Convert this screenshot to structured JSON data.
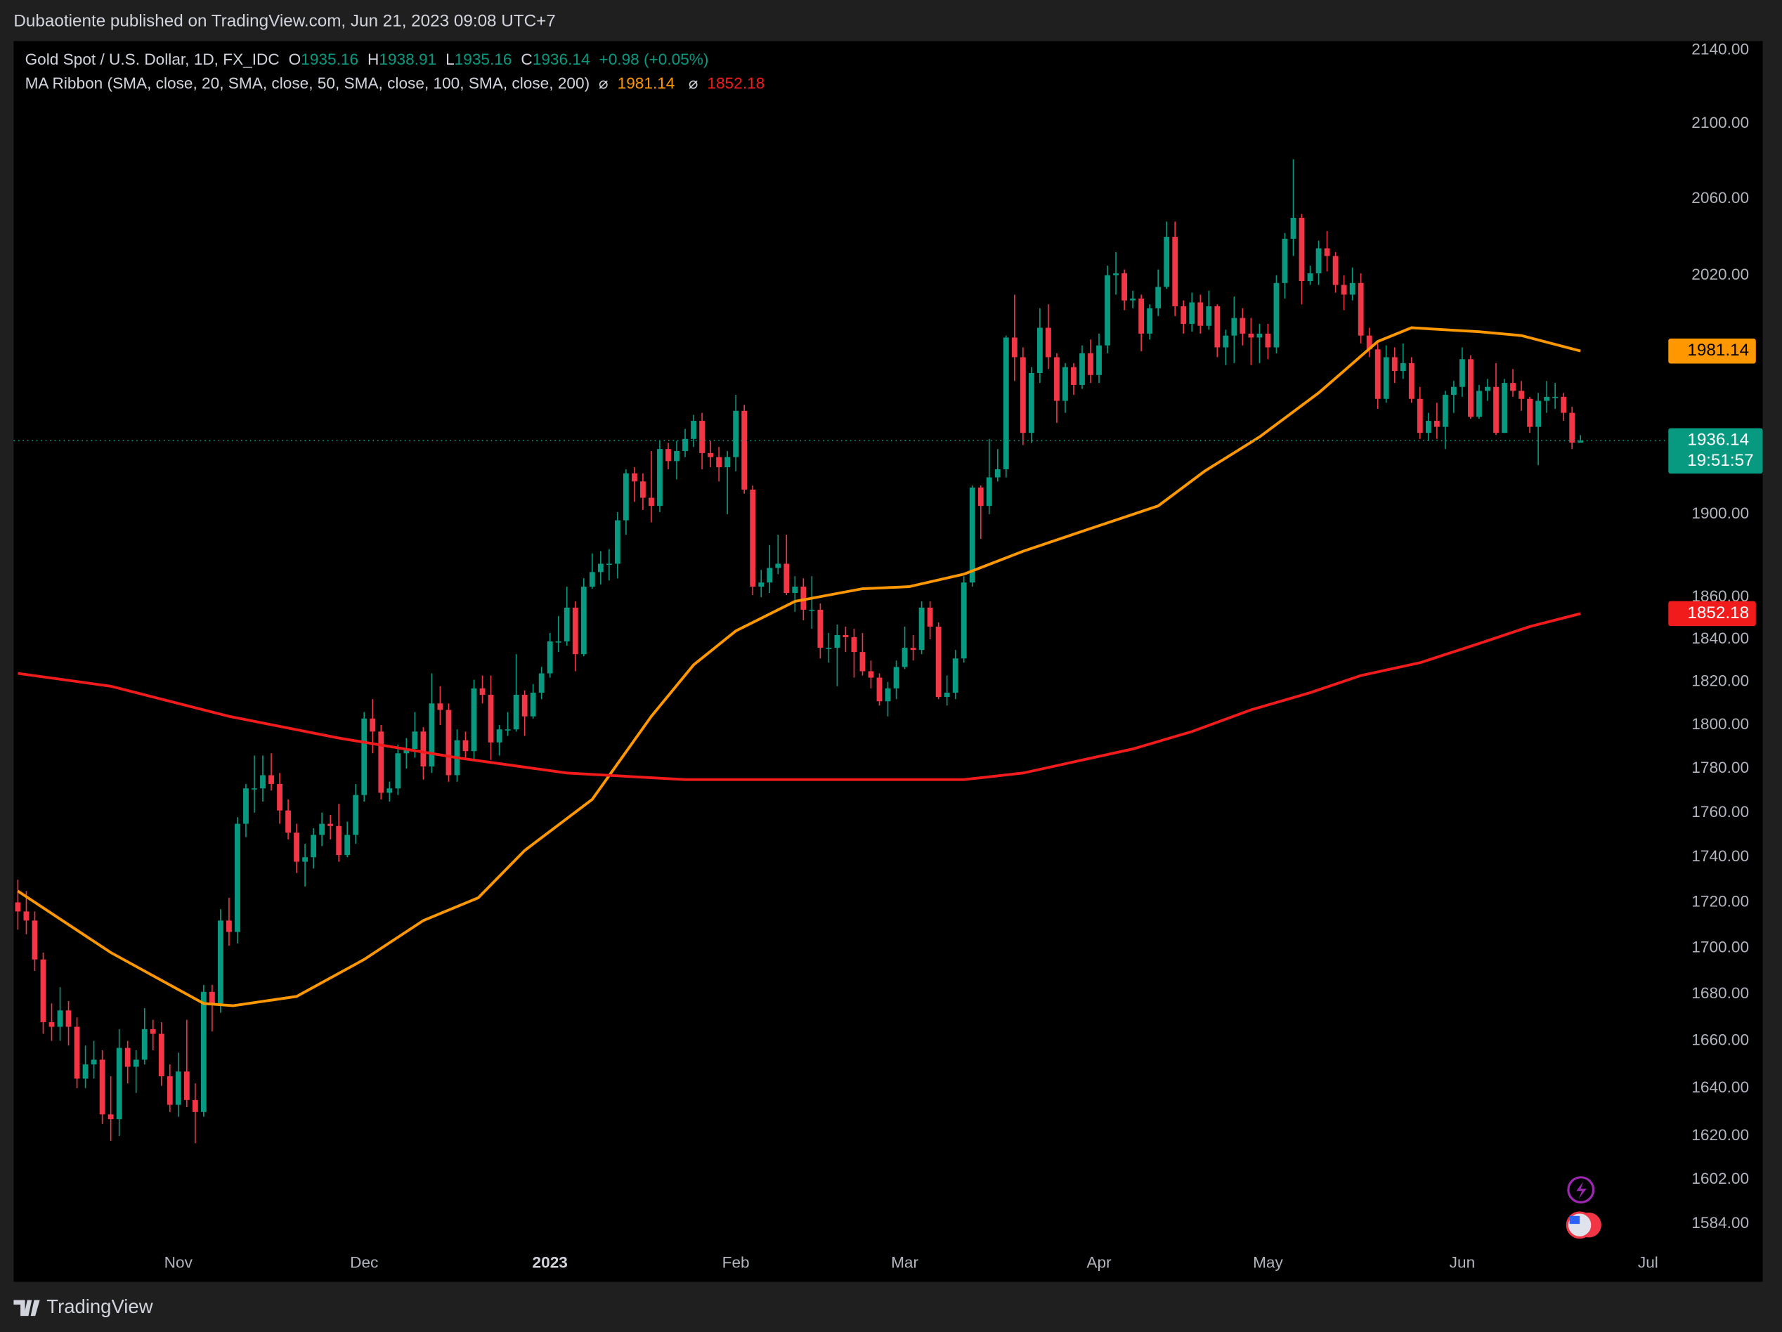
{
  "header": {
    "published": "Dubaotiente published on TradingView.com, Jun 21, 2023 09:08 UTC+7"
  },
  "chart_data": {
    "type": "candlestick",
    "symbol": "Gold Spot / U.S. Dollar, 1D, FX_IDC",
    "ohlc_labels": [
      "O",
      "H",
      "L",
      "C"
    ],
    "change": "+0.98 (+0.05%)",
    "ribbon": "MA Ribbon (SMA, close, 20, SMA, close, 50, SMA, close, 100, SMA, close, 200)",
    "ribbon_symbol": "⌀",
    "countdown": "19:51:57",
    "up_color": "#089981",
    "down_color": "#f23645",
    "ohlc": [
      [
        1720,
        1730,
        1708,
        1716
      ],
      [
        1716,
        1725,
        1706,
        1712
      ],
      [
        1712,
        1716,
        1690,
        1695
      ],
      [
        1695,
        1698,
        1663,
        1668
      ],
      [
        1668,
        1676,
        1660,
        1666
      ],
      [
        1666,
        1683,
        1660,
        1673
      ],
      [
        1673,
        1677,
        1658,
        1666
      ],
      [
        1666,
        1670,
        1640,
        1644
      ],
      [
        1644,
        1658,
        1640,
        1650
      ],
      [
        1650,
        1660,
        1644,
        1652
      ],
      [
        1652,
        1656,
        1625,
        1629
      ],
      [
        1629,
        1645,
        1618,
        1627
      ],
      [
        1627,
        1665,
        1620,
        1657
      ],
      [
        1657,
        1660,
        1642,
        1649
      ],
      [
        1649,
        1656,
        1638,
        1652
      ],
      [
        1652,
        1674,
        1650,
        1665
      ],
      [
        1665,
        1669,
        1656,
        1663
      ],
      [
        1663,
        1668,
        1641,
        1645
      ],
      [
        1645,
        1650,
        1630,
        1633
      ],
      [
        1633,
        1655,
        1628,
        1647
      ],
      [
        1647,
        1669,
        1632,
        1635
      ],
      [
        1635,
        1642,
        1617,
        1630
      ],
      [
        1630,
        1684,
        1628,
        1681
      ],
      [
        1681,
        1684,
        1664,
        1676
      ],
      [
        1676,
        1717,
        1672,
        1712
      ],
      [
        1712,
        1722,
        1701,
        1707
      ],
      [
        1707,
        1758,
        1702,
        1755
      ],
      [
        1755,
        1773,
        1749,
        1771
      ],
      [
        1771,
        1786,
        1760,
        1771
      ],
      [
        1771,
        1786,
        1765,
        1777
      ],
      [
        1777,
        1787,
        1770,
        1773
      ],
      [
        1773,
        1778,
        1755,
        1761
      ],
      [
        1761,
        1766,
        1748,
        1751
      ],
      [
        1751,
        1755,
        1733,
        1738
      ],
      [
        1738,
        1746,
        1727,
        1740
      ],
      [
        1740,
        1753,
        1735,
        1750
      ],
      [
        1750,
        1760,
        1745,
        1755
      ],
      [
        1755,
        1759,
        1748,
        1754
      ],
      [
        1754,
        1764,
        1738,
        1741
      ],
      [
        1741,
        1756,
        1740,
        1750
      ],
      [
        1750,
        1773,
        1746,
        1768
      ],
      [
        1768,
        1806,
        1765,
        1803
      ],
      [
        1803,
        1812,
        1787,
        1797
      ],
      [
        1797,
        1800,
        1766,
        1769
      ],
      [
        1769,
        1774,
        1765,
        1771
      ],
      [
        1771,
        1791,
        1768,
        1787
      ],
      [
        1787,
        1794,
        1780,
        1789
      ],
      [
        1789,
        1806,
        1785,
        1797
      ],
      [
        1797,
        1799,
        1775,
        1781
      ],
      [
        1781,
        1824,
        1778,
        1810
      ],
      [
        1810,
        1818,
        1800,
        1807
      ],
      [
        1807,
        1810,
        1774,
        1777
      ],
      [
        1777,
        1798,
        1774,
        1793
      ],
      [
        1793,
        1797,
        1785,
        1788
      ],
      [
        1788,
        1821,
        1784,
        1817
      ],
      [
        1817,
        1823,
        1810,
        1814
      ],
      [
        1814,
        1823,
        1784,
        1792
      ],
      [
        1792,
        1800,
        1786,
        1798
      ],
      [
        1798,
        1806,
        1795,
        1798
      ],
      [
        1798,
        1833,
        1797,
        1814
      ],
      [
        1814,
        1816,
        1795,
        1804
      ],
      [
        1804,
        1819,
        1803,
        1815
      ],
      [
        1815,
        1827,
        1812,
        1824
      ],
      [
        1824,
        1843,
        1822,
        1839
      ],
      [
        1839,
        1851,
        1834,
        1839
      ],
      [
        1839,
        1865,
        1837,
        1855
      ],
      [
        1855,
        1858,
        1825,
        1833
      ],
      [
        1833,
        1869,
        1832,
        1865
      ],
      [
        1865,
        1881,
        1864,
        1872
      ],
      [
        1872,
        1882,
        1866,
        1876
      ],
      [
        1876,
        1883,
        1868,
        1876
      ],
      [
        1876,
        1901,
        1869,
        1897
      ],
      [
        1897,
        1922,
        1890,
        1920
      ],
      [
        1920,
        1923,
        1906,
        1916
      ],
      [
        1916,
        1920,
        1902,
        1908
      ],
      [
        1908,
        1931,
        1896,
        1904
      ],
      [
        1904,
        1936,
        1901,
        1932
      ],
      [
        1932,
        1935,
        1922,
        1926
      ],
      [
        1926,
        1936,
        1917,
        1931
      ],
      [
        1931,
        1942,
        1928,
        1937
      ],
      [
        1937,
        1949,
        1933,
        1946
      ],
      [
        1946,
        1950,
        1922,
        1930
      ],
      [
        1930,
        1936,
        1923,
        1928
      ],
      [
        1928,
        1933,
        1916,
        1923
      ],
      [
        1923,
        1931,
        1900,
        1928
      ],
      [
        1928,
        1959,
        1921,
        1951
      ],
      [
        1951,
        1954,
        1910,
        1912
      ],
      [
        1912,
        1914,
        1861,
        1865
      ],
      [
        1865,
        1873,
        1860,
        1867
      ],
      [
        1867,
        1885,
        1862,
        1874
      ],
      [
        1874,
        1890,
        1871,
        1876
      ],
      [
        1876,
        1890,
        1861,
        1862
      ],
      [
        1862,
        1870,
        1853,
        1865
      ],
      [
        1865,
        1869,
        1849,
        1854
      ],
      [
        1854,
        1870,
        1845,
        1854
      ],
      [
        1854,
        1857,
        1831,
        1836
      ],
      [
        1836,
        1843,
        1829,
        1836
      ],
      [
        1836,
        1847,
        1818,
        1842
      ],
      [
        1842,
        1846,
        1834,
        1841
      ],
      [
        1841,
        1845,
        1822,
        1834
      ],
      [
        1834,
        1843,
        1823,
        1825
      ],
      [
        1825,
        1830,
        1817,
        1822
      ],
      [
        1822,
        1824,
        1809,
        1811
      ],
      [
        1811,
        1820,
        1804,
        1817
      ],
      [
        1817,
        1830,
        1812,
        1827
      ],
      [
        1827,
        1846,
        1826,
        1836
      ],
      [
        1836,
        1842,
        1830,
        1835
      ],
      [
        1835,
        1858,
        1833,
        1855
      ],
      [
        1855,
        1858,
        1840,
        1846
      ],
      [
        1846,
        1848,
        1812,
        1813
      ],
      [
        1813,
        1823,
        1809,
        1815
      ],
      [
        1815,
        1835,
        1812,
        1831
      ],
      [
        1831,
        1870,
        1829,
        1867
      ],
      [
        1867,
        1914,
        1865,
        1913
      ],
      [
        1913,
        1914,
        1888,
        1904
      ],
      [
        1904,
        1937,
        1900,
        1918
      ],
      [
        1918,
        1932,
        1916,
        1922
      ],
      [
        1922,
        1989,
        1918,
        1988
      ],
      [
        1988,
        2010,
        1966,
        1978
      ],
      [
        1978,
        1983,
        1934,
        1940
      ],
      [
        1940,
        1973,
        1935,
        1970
      ],
      [
        1970,
        2003,
        1965,
        1993
      ],
      [
        1993,
        2005,
        1972,
        1978
      ],
      [
        1978,
        1980,
        1945,
        1956
      ],
      [
        1956,
        1975,
        1950,
        1973
      ],
      [
        1973,
        1975,
        1959,
        1964
      ],
      [
        1964,
        1984,
        1962,
        1980
      ],
      [
        1980,
        1987,
        1965,
        1969
      ],
      [
        1969,
        1990,
        1965,
        1984
      ],
      [
        1984,
        2025,
        1980,
        2020
      ],
      [
        2020,
        2032,
        2010,
        2021
      ],
      [
        2021,
        2023,
        2002,
        2007
      ],
      [
        2007,
        2012,
        2003,
        2008
      ],
      [
        2008,
        2010,
        1981,
        1990
      ],
      [
        1990,
        2005,
        1987,
        2003
      ],
      [
        2003,
        2023,
        1999,
        2014
      ],
      [
        2014,
        2048,
        2013,
        2040
      ],
      [
        2040,
        2048,
        1999,
        2004
      ],
      [
        2004,
        2007,
        1990,
        1995
      ],
      [
        1995,
        2011,
        1991,
        2006
      ],
      [
        2006,
        2010,
        1990,
        1994
      ],
      [
        1994,
        2012,
        1992,
        2004
      ],
      [
        2004,
        2005,
        1978,
        1983
      ],
      [
        1983,
        1992,
        1974,
        1989
      ],
      [
        1989,
        2009,
        1975,
        1998
      ],
      [
        1998,
        2003,
        1984,
        1990
      ],
      [
        1990,
        1998,
        1974,
        1988
      ],
      [
        1988,
        1995,
        1975,
        1990
      ],
      [
        1990,
        1995,
        1977,
        1983
      ],
      [
        1983,
        2020,
        1980,
        2016
      ],
      [
        2016,
        2042,
        2008,
        2039
      ],
      [
        2039,
        2081,
        2030,
        2050
      ],
      [
        2050,
        2052,
        2005,
        2017
      ],
      [
        2017,
        2025,
        2015,
        2021
      ],
      [
        2021,
        2038,
        2015,
        2034
      ],
      [
        2034,
        2043,
        2022,
        2030
      ],
      [
        2030,
        2032,
        2011,
        2015
      ],
      [
        2015,
        2020,
        2002,
        2010
      ],
      [
        2010,
        2024,
        2007,
        2016
      ],
      [
        2016,
        2021,
        1985,
        1989
      ],
      [
        1989,
        1993,
        1978,
        1982
      ],
      [
        1982,
        1985,
        1952,
        1957
      ],
      [
        1957,
        1984,
        1955,
        1978
      ],
      [
        1978,
        1983,
        1965,
        1971
      ],
      [
        1971,
        1985,
        1967,
        1975
      ],
      [
        1975,
        1978,
        1955,
        1957
      ],
      [
        1957,
        1963,
        1937,
        1940
      ],
      [
        1940,
        1950,
        1936,
        1946
      ],
      [
        1946,
        1955,
        1937,
        1943
      ],
      [
        1943,
        1961,
        1932,
        1959
      ],
      [
        1959,
        1966,
        1950,
        1963
      ],
      [
        1963,
        1983,
        1958,
        1977
      ],
      [
        1977,
        1979,
        1947,
        1948
      ],
      [
        1948,
        1964,
        1947,
        1961
      ],
      [
        1961,
        1967,
        1956,
        1963
      ],
      [
        1963,
        1975,
        1939,
        1940
      ],
      [
        1940,
        1967,
        1940,
        1965
      ],
      [
        1965,
        1972,
        1958,
        1961
      ],
      [
        1961,
        1966,
        1951,
        1957
      ],
      [
        1957,
        1958,
        1940,
        1943
      ],
      [
        1943,
        1960,
        1924,
        1956
      ],
      [
        1956,
        1966,
        1950,
        1958
      ],
      [
        1958,
        1965,
        1952,
        1958
      ],
      [
        1958,
        1960,
        1946,
        1950
      ],
      [
        1950,
        1953,
        1932,
        1935.16
      ],
      [
        1935.16,
        1938.91,
        1935.16,
        1936.14
      ]
    ],
    "series": [
      {
        "color": "#ff9800",
        "x": [
          0,
          11,
          22,
          25.5,
          33,
          41,
          48,
          54.5,
          60,
          68,
          75,
          80,
          85,
          92,
          100,
          105.5,
          112,
          119,
          127,
          135,
          140.5,
          147,
          154,
          161,
          165,
          173,
          178,
          185
        ],
        "values": [
          1725,
          1698,
          1676,
          1675,
          1679,
          1695,
          1712,
          1722,
          1743,
          1766,
          1804,
          1828,
          1844,
          1858,
          1864,
          1865,
          1871,
          1882,
          1893,
          1904,
          1921,
          1938,
          1960,
          1986,
          1993,
          1991,
          1989,
          1981.14
        ]
      },
      {
        "color": "#f21b1b",
        "x": [
          0,
          11,
          25,
          38,
          52,
          65,
          79,
          92,
          105.5,
          112,
          119,
          132,
          139,
          146,
          153,
          159,
          166,
          173,
          179,
          185
        ],
        "values": [
          1824,
          1818,
          1804,
          1794,
          1785,
          1778,
          1775,
          1775,
          1775,
          1775,
          1778,
          1789,
          1797,
          1807,
          1815,
          1823,
          1829,
          1838,
          1846,
          1852.18
        ]
      }
    ],
    "xlim": [
      -0.5,
      195
    ],
    "xticks": [
      {
        "value": 19,
        "label": "Nov"
      },
      {
        "value": 41,
        "label": "Dec"
      },
      {
        "value": 63,
        "label": "2023"
      },
      {
        "value": 85,
        "label": "Feb"
      },
      {
        "value": 105,
        "label": "Mar"
      },
      {
        "value": 128,
        "label": "Apr"
      },
      {
        "value": 148,
        "label": "May"
      },
      {
        "value": 171,
        "label": "Jun"
      },
      {
        "value": 193,
        "label": "Jul"
      }
    ],
    "ylim": [
      1561,
      2145
    ],
    "log_scale": true,
    "yticks": [
      {
        "value": 2140,
        "label": "2140.00"
      },
      {
        "value": 2100,
        "label": "2100.00"
      },
      {
        "value": 2060,
        "label": "2060.00"
      },
      {
        "value": 2020,
        "label": "2020.00"
      },
      {
        "value": 1900,
        "label": "1900.00"
      },
      {
        "value": 1860,
        "label": "1860.00"
      },
      {
        "value": 1840,
        "label": "1840.00"
      },
      {
        "value": 1820,
        "label": "1820.00"
      },
      {
        "value": 1800,
        "label": "1800.00"
      },
      {
        "value": 1780,
        "label": "1780.00"
      },
      {
        "value": 1760,
        "label": "1760.00"
      },
      {
        "value": 1740,
        "label": "1740.00"
      },
      {
        "value": 1720,
        "label": "1720.00"
      },
      {
        "value": 1700,
        "label": "1700.00"
      },
      {
        "value": 1680,
        "label": "1680.00"
      },
      {
        "value": 1660,
        "label": "1660.00"
      },
      {
        "value": 1640,
        "label": "1640.00"
      },
      {
        "value": 1620,
        "label": "1620.00"
      },
      {
        "value": 1602,
        "label": "1602.00"
      },
      {
        "value": 1584,
        "label": "1584.00"
      }
    ]
  },
  "footer": {
    "brand": "TradingView"
  }
}
